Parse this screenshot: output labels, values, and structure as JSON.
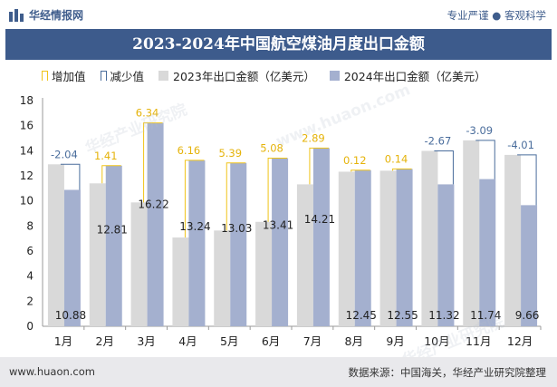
{
  "header": {
    "site_name": "华经情报网",
    "tagline": "专业严谨 ● 客观科学"
  },
  "title": "2023-2024年中国航空煤油月度出口金额",
  "legend": {
    "increase": "增加值",
    "decrease": "减少值",
    "series_2023": "2023年出口金额（亿美元）",
    "series_2024": "2024年出口金额（亿美元）"
  },
  "footer": {
    "url": "www.huaon.com",
    "source": "数据来源：中国海关，华经产业研究院整理"
  },
  "watermarks": [
    "华经产业研究院",
    "www.huaon.com",
    "华经产业研究院"
  ],
  "colors": {
    "header_blue": "#3d5b8c",
    "series_2023": "#d9d9d9",
    "series_2024": "#a4b0cf",
    "increase": "#f0c419",
    "decrease": "#4a6d9c",
    "increase_text": "#e5b30a",
    "decrease_text": "#4a6d9c"
  },
  "chart_data": {
    "type": "bar",
    "categories": [
      "1月",
      "2月",
      "3月",
      "4月",
      "5月",
      "6月",
      "7月",
      "8月",
      "9月",
      "10月",
      "11月",
      "12月"
    ],
    "series": [
      {
        "name": "2023年出口金额（亿美元）",
        "values": [
          12.92,
          11.4,
          9.88,
          7.08,
          7.64,
          8.33,
          11.32,
          12.33,
          12.41,
          13.99,
          14.83,
          13.67
        ]
      },
      {
        "name": "2024年出口金额（亿美元）",
        "values": [
          10.88,
          12.81,
          16.22,
          13.24,
          13.03,
          13.41,
          14.21,
          12.45,
          12.55,
          11.32,
          11.74,
          9.66
        ]
      }
    ],
    "change": {
      "values": [
        -2.04,
        1.41,
        6.34,
        6.16,
        5.39,
        5.08,
        2.89,
        0.12,
        0.14,
        -2.67,
        -3.09,
        -4.01
      ],
      "labels": [
        "-2.04",
        "1.41",
        "6.34",
        "6.16",
        "5.39",
        "5.08",
        "2.89",
        "0.12",
        "0.14",
        "-2.67",
        "-3.09",
        "-4.01"
      ]
    },
    "value_labels_2024": [
      "10.88",
      "12.81",
      "16.22",
      "13.24",
      "13.03",
      "13.41",
      "14.21",
      "12.45",
      "12.55",
      "11.32",
      "11.74",
      "9.66"
    ],
    "yticks": [
      "0",
      "2",
      "4",
      "6",
      "8",
      "10",
      "12",
      "14",
      "16",
      "18"
    ],
    "ylim": [
      0,
      18
    ],
    "xlabel": "",
    "ylabel": "",
    "legend_position": "top",
    "grid": false
  }
}
